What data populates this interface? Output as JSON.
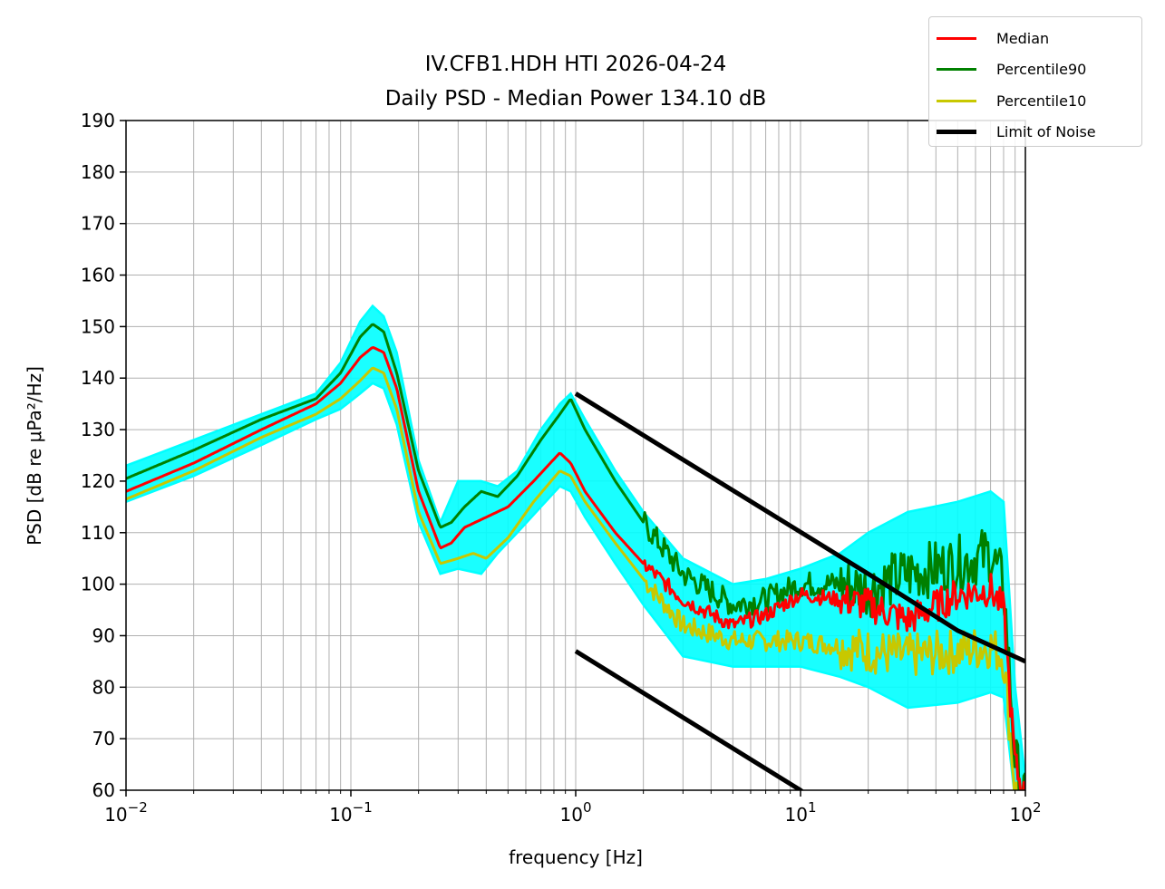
{
  "chart_data": {
    "type": "line",
    "title": [
      "IV.CFB1.HDH HTI 2026-04-24",
      "Daily PSD - Median Power 134.10 dB"
    ],
    "xlabel": "frequency [Hz]",
    "ylabel": "PSD [dB re μPa²/Hz]",
    "xscale": "log",
    "xlim": [
      0.01,
      100
    ],
    "ylim": [
      60,
      190
    ],
    "grid": true,
    "x_ticks": [
      0.01,
      0.1,
      1,
      10,
      100
    ],
    "y_ticks": [
      60,
      70,
      80,
      90,
      100,
      110,
      120,
      130,
      140,
      150,
      160,
      170,
      180,
      190
    ],
    "legend_position": "top-right (outside plot)",
    "colors": {
      "median": "#ff0000",
      "p90": "#008000",
      "p10": "#c8c800",
      "limit": "#000000",
      "hourly": "#00ffff",
      "grid": "#b0b0b0"
    },
    "series": [
      {
        "name": "Median",
        "color": "#ff0000",
        "x": [
          0.01,
          0.02,
          0.04,
          0.07,
          0.09,
          0.11,
          0.125,
          0.14,
          0.16,
          0.2,
          0.25,
          0.28,
          0.32,
          0.4,
          0.5,
          0.65,
          0.85,
          0.95,
          1.1,
          1.5,
          2,
          3,
          5,
          7,
          10,
          15,
          20,
          30,
          50,
          70,
          80,
          90,
          100
        ],
        "y": [
          118,
          123.5,
          130,
          135,
          139,
          144,
          146,
          145,
          138,
          118,
          107,
          108,
          111,
          113,
          115,
          120,
          125.5,
          123.5,
          118,
          110,
          104,
          97,
          92,
          94,
          98,
          97,
          96,
          93,
          98,
          99,
          95,
          65,
          58
        ]
      },
      {
        "name": "Percentile90",
        "color": "#008000",
        "x": [
          0.01,
          0.02,
          0.04,
          0.07,
          0.09,
          0.11,
          0.125,
          0.14,
          0.16,
          0.2,
          0.25,
          0.28,
          0.32,
          0.38,
          0.45,
          0.55,
          0.7,
          0.85,
          0.95,
          1.1,
          1.5,
          2,
          3,
          5,
          7,
          10,
          15,
          20,
          30,
          50,
          70,
          80,
          90,
          100
        ],
        "y": [
          120.5,
          126,
          132,
          136,
          141,
          148,
          150.5,
          149,
          141,
          122,
          111,
          112,
          115,
          118,
          117,
          121,
          128,
          133,
          136,
          130,
          120,
          112,
          102,
          96,
          97,
          100,
          100,
          99,
          102,
          104,
          106,
          100,
          66,
          58
        ]
      },
      {
        "name": "Percentile10",
        "color": "#c8c800",
        "x": [
          0.01,
          0.02,
          0.04,
          0.07,
          0.09,
          0.11,
          0.125,
          0.14,
          0.16,
          0.2,
          0.25,
          0.3,
          0.35,
          0.4,
          0.5,
          0.65,
          0.85,
          0.95,
          1.1,
          1.5,
          2,
          3,
          5,
          7,
          10,
          15,
          20,
          30,
          50,
          70,
          80,
          90,
          100
        ],
        "y": [
          116.5,
          122,
          128.5,
          133,
          136,
          139.5,
          142,
          141,
          134,
          114,
          104,
          105,
          106,
          105,
          109,
          116,
          122,
          121,
          116,
          108,
          101,
          92,
          89,
          89,
          89,
          88,
          87,
          86,
          87,
          88,
          86,
          60,
          55
        ]
      },
      {
        "name": "Limit of Noise",
        "color": "#000000",
        "x": [
          1,
          20,
          50,
          100
        ],
        "y": [
          137,
          102,
          91,
          85
        ]
      }
    ],
    "extra_lines": [
      {
        "name": "lower-noise-limit",
        "color": "#000000",
        "x": [
          1,
          10,
          10.3
        ],
        "y": [
          87,
          60,
          59.5
        ]
      }
    ],
    "hourly_band": {
      "name": "hourly PSDs",
      "color": "#00ffff",
      "x": [
        0.01,
        0.02,
        0.04,
        0.07,
        0.09,
        0.11,
        0.125,
        0.14,
        0.16,
        0.2,
        0.25,
        0.3,
        0.38,
        0.45,
        0.55,
        0.7,
        0.85,
        0.95,
        1.1,
        1.5,
        2,
        3,
        5,
        7,
        10,
        15,
        20,
        30,
        50,
        70,
        80,
        90,
        100
      ],
      "upper": [
        123,
        128,
        133,
        137,
        143,
        151,
        154,
        152,
        145,
        124,
        112,
        120,
        120,
        119,
        122,
        130,
        135,
        137,
        132,
        122,
        114,
        105,
        100,
        101,
        103,
        106,
        110,
        114,
        116,
        118,
        116,
        80,
        62
      ],
      "lower": [
        116,
        121,
        127,
        132,
        134,
        137,
        139,
        138,
        131,
        112,
        102,
        103,
        102,
        106,
        110,
        115,
        119,
        118,
        113,
        104,
        96,
        86,
        84,
        84,
        84,
        82,
        80,
        76,
        77,
        79,
        78,
        58,
        55
      ]
    }
  },
  "legend": {
    "items": [
      {
        "label": "Median",
        "color": "#ff0000"
      },
      {
        "label": "Percentile90",
        "color": "#008000"
      },
      {
        "label": "Percentile10",
        "color": "#c8c800"
      },
      {
        "label": "Limit of Noise",
        "color": "#000000"
      }
    ]
  }
}
